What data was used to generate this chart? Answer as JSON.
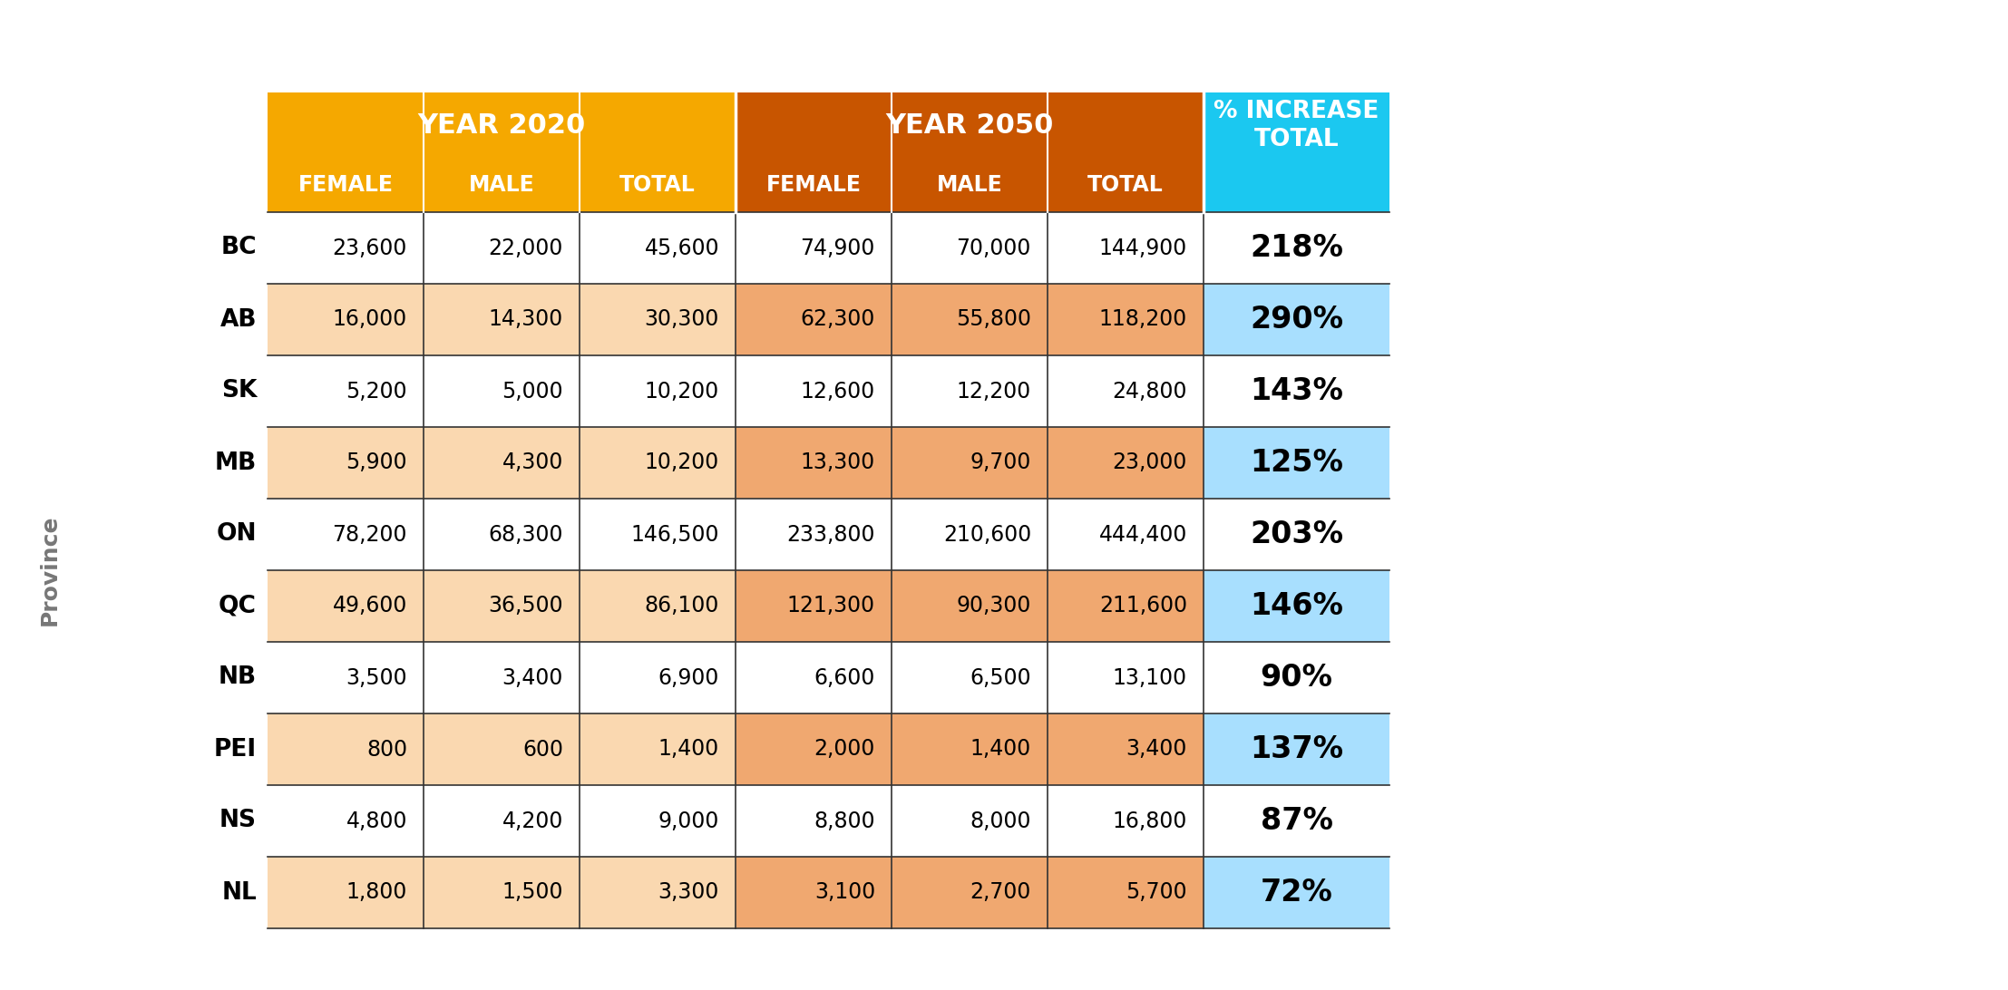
{
  "provinces": [
    "BC",
    "AB",
    "SK",
    "MB",
    "ON",
    "QC",
    "NB",
    "PEI",
    "NS",
    "NL"
  ],
  "year2020": {
    "female": [
      23600,
      16000,
      5200,
      5900,
      78200,
      49600,
      3500,
      800,
      4800,
      1800
    ],
    "male": [
      22000,
      14300,
      5000,
      4300,
      68300,
      36500,
      3400,
      600,
      4200,
      1500
    ],
    "total": [
      45600,
      30300,
      10200,
      10200,
      146500,
      86100,
      6900,
      1400,
      9000,
      3300
    ]
  },
  "year2050": {
    "female": [
      74900,
      62300,
      12600,
      13300,
      233800,
      121300,
      6600,
      2000,
      8800,
      3100
    ],
    "male": [
      70000,
      55800,
      12200,
      9700,
      210600,
      90300,
      6500,
      1400,
      8000,
      2700
    ],
    "total": [
      144900,
      118200,
      24800,
      23000,
      444400,
      211600,
      13100,
      3400,
      16800,
      5700
    ]
  },
  "pct_increase": [
    "218%",
    "290%",
    "143%",
    "125%",
    "203%",
    "146%",
    "90%",
    "137%",
    "87%",
    "72%"
  ],
  "pct_highlighted": [
    false,
    true,
    false,
    true,
    false,
    true,
    false,
    true,
    false,
    true
  ],
  "header_2020_color": "#F5A800",
  "header_2050_color": "#C85500",
  "header_pct_color": "#1BC8F0",
  "row_bg_odd_2020": "#FFFFFF",
  "row_bg_even_2020": "#FAD8B0",
  "row_bg_odd_2050": "#FFFFFF",
  "row_bg_even_2050": "#F0A870",
  "row_pct_highlighted_bg": "#A8DFFE",
  "row_pct_normal_bg": "#FFFFFF",
  "province_label": "Province",
  "col_headers_2020": [
    "FEMALE",
    "MALE",
    "TOTAL"
  ],
  "col_headers_2050": [
    "FEMALE",
    "MALE",
    "TOTAL"
  ],
  "col_header_pct_line1": "% INCREASE",
  "col_header_pct_line2": "TOTAL",
  "year_header_2020": "YEAR 2020",
  "year_header_2050": "YEAR 2050",
  "divider_color": "#333333",
  "header_divider_color": "#FFFFFF"
}
